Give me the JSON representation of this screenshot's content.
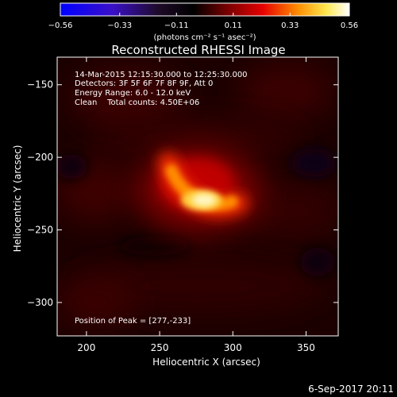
{
  "chart_data": {
    "type": "heatmap",
    "title": "Reconstructed RHESSI Image",
    "xlabel": "Heliocentric X (arcsec)",
    "ylabel": "Heliocentric Y (arcsec)",
    "xlim": [
      180,
      372
    ],
    "ylim": [
      -323,
      -131
    ],
    "xticks": [
      200,
      250,
      300,
      350
    ],
    "yticks": [
      -150,
      -200,
      -250,
      -300
    ],
    "colorbar": {
      "ticks": [
        "-0.56",
        "-0.33",
        "-0.11",
        "0.11",
        "0.33",
        "0.56"
      ],
      "range": [
        -0.56,
        0.56
      ],
      "units_label": "(photons cm⁻² s⁻¹ asec⁻²)",
      "colormap": [
        "#0000ff",
        "#4b0fb4",
        "#1e0a28",
        "#000000",
        "#7a0000",
        "#e60000",
        "#ff8c00",
        "#ffe850",
        "#ffffff"
      ]
    },
    "annotations": [
      "14-Mar-2015 12:15:30.000 to 12:25:30.000",
      "Detectors: 3F 5F 6F 7F 8F 9F, Att 0",
      "Energy Range: 6.0 - 12.0 keV",
      "Clean    Total counts: 4.50E+06"
    ],
    "peak_label": "Position of Peak = [277,-233]",
    "peak": {
      "x": 277,
      "y": -233,
      "value": 0.56
    }
  },
  "footer": {
    "date": "6-Sep-2017 20:11"
  }
}
